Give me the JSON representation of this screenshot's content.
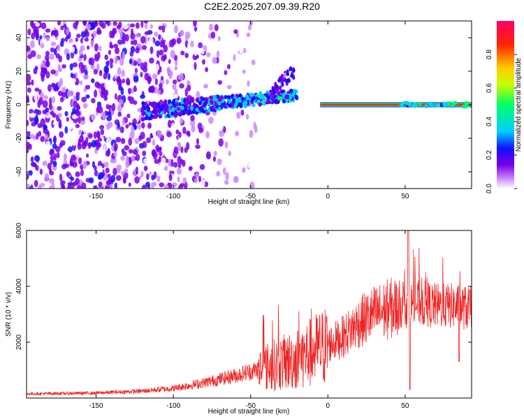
{
  "title": "C2E2.2025.207.09.39.R20",
  "chart_data": [
    {
      "type": "heatmap",
      "xlabel": "Height of straight line (km)",
      "ylabel": "Frequency (Hz)",
      "xlim": [
        -195,
        93
      ],
      "ylim": [
        -50,
        50
      ],
      "xticks": [
        -150,
        -100,
        -50,
        0,
        50
      ],
      "yticks": [
        -40,
        -20,
        0,
        20,
        40
      ],
      "colorbar": {
        "label": "Normalized spectral amplitude",
        "range": [
          0,
          1
        ],
        "ticks": [
          "0.0",
          "0.2",
          "0.4",
          "0.6",
          "0.8"
        ],
        "colormap": [
          "#ffffff",
          "#cc88ff",
          "#7a00e6",
          "#1010ff",
          "#00cfff",
          "#00ff66",
          "#c8ff00",
          "#ffcc00",
          "#ff2200",
          "#ff0066"
        ]
      },
      "features": {
        "noise_region_km": [
          -195,
          -85
        ],
        "scatter_band_km": [
          -120,
          -20
        ],
        "scatter_band_center_hz": [
          -5,
          10
        ],
        "tone_line_km": [
          -5,
          93
        ],
        "tone_line_hz": 0,
        "tone_line_amplitude": 0.95
      }
    },
    {
      "type": "line",
      "xlabel": "Height of straight line (km)",
      "ylabel": "SNR (10 * v/v)",
      "xlim": [
        -195,
        93
      ],
      "ylim": [
        0,
        6000
      ],
      "xticks": [
        -150,
        -100,
        -50,
        0,
        50
      ],
      "yticks": [
        2000,
        4000,
        6000
      ],
      "series_color": "#ee2222",
      "envelope": {
        "x": [
          -195,
          -150,
          -120,
          -100,
          -80,
          -60,
          -40,
          -20,
          0,
          10,
          20,
          30,
          40,
          50,
          60,
          70,
          80,
          93
        ],
        "y": [
          150,
          180,
          250,
          350,
          550,
          800,
          1100,
          1400,
          1900,
          2200,
          2700,
          3000,
          3200,
          3300,
          3400,
          3300,
          3300,
          3200
        ]
      }
    }
  ]
}
